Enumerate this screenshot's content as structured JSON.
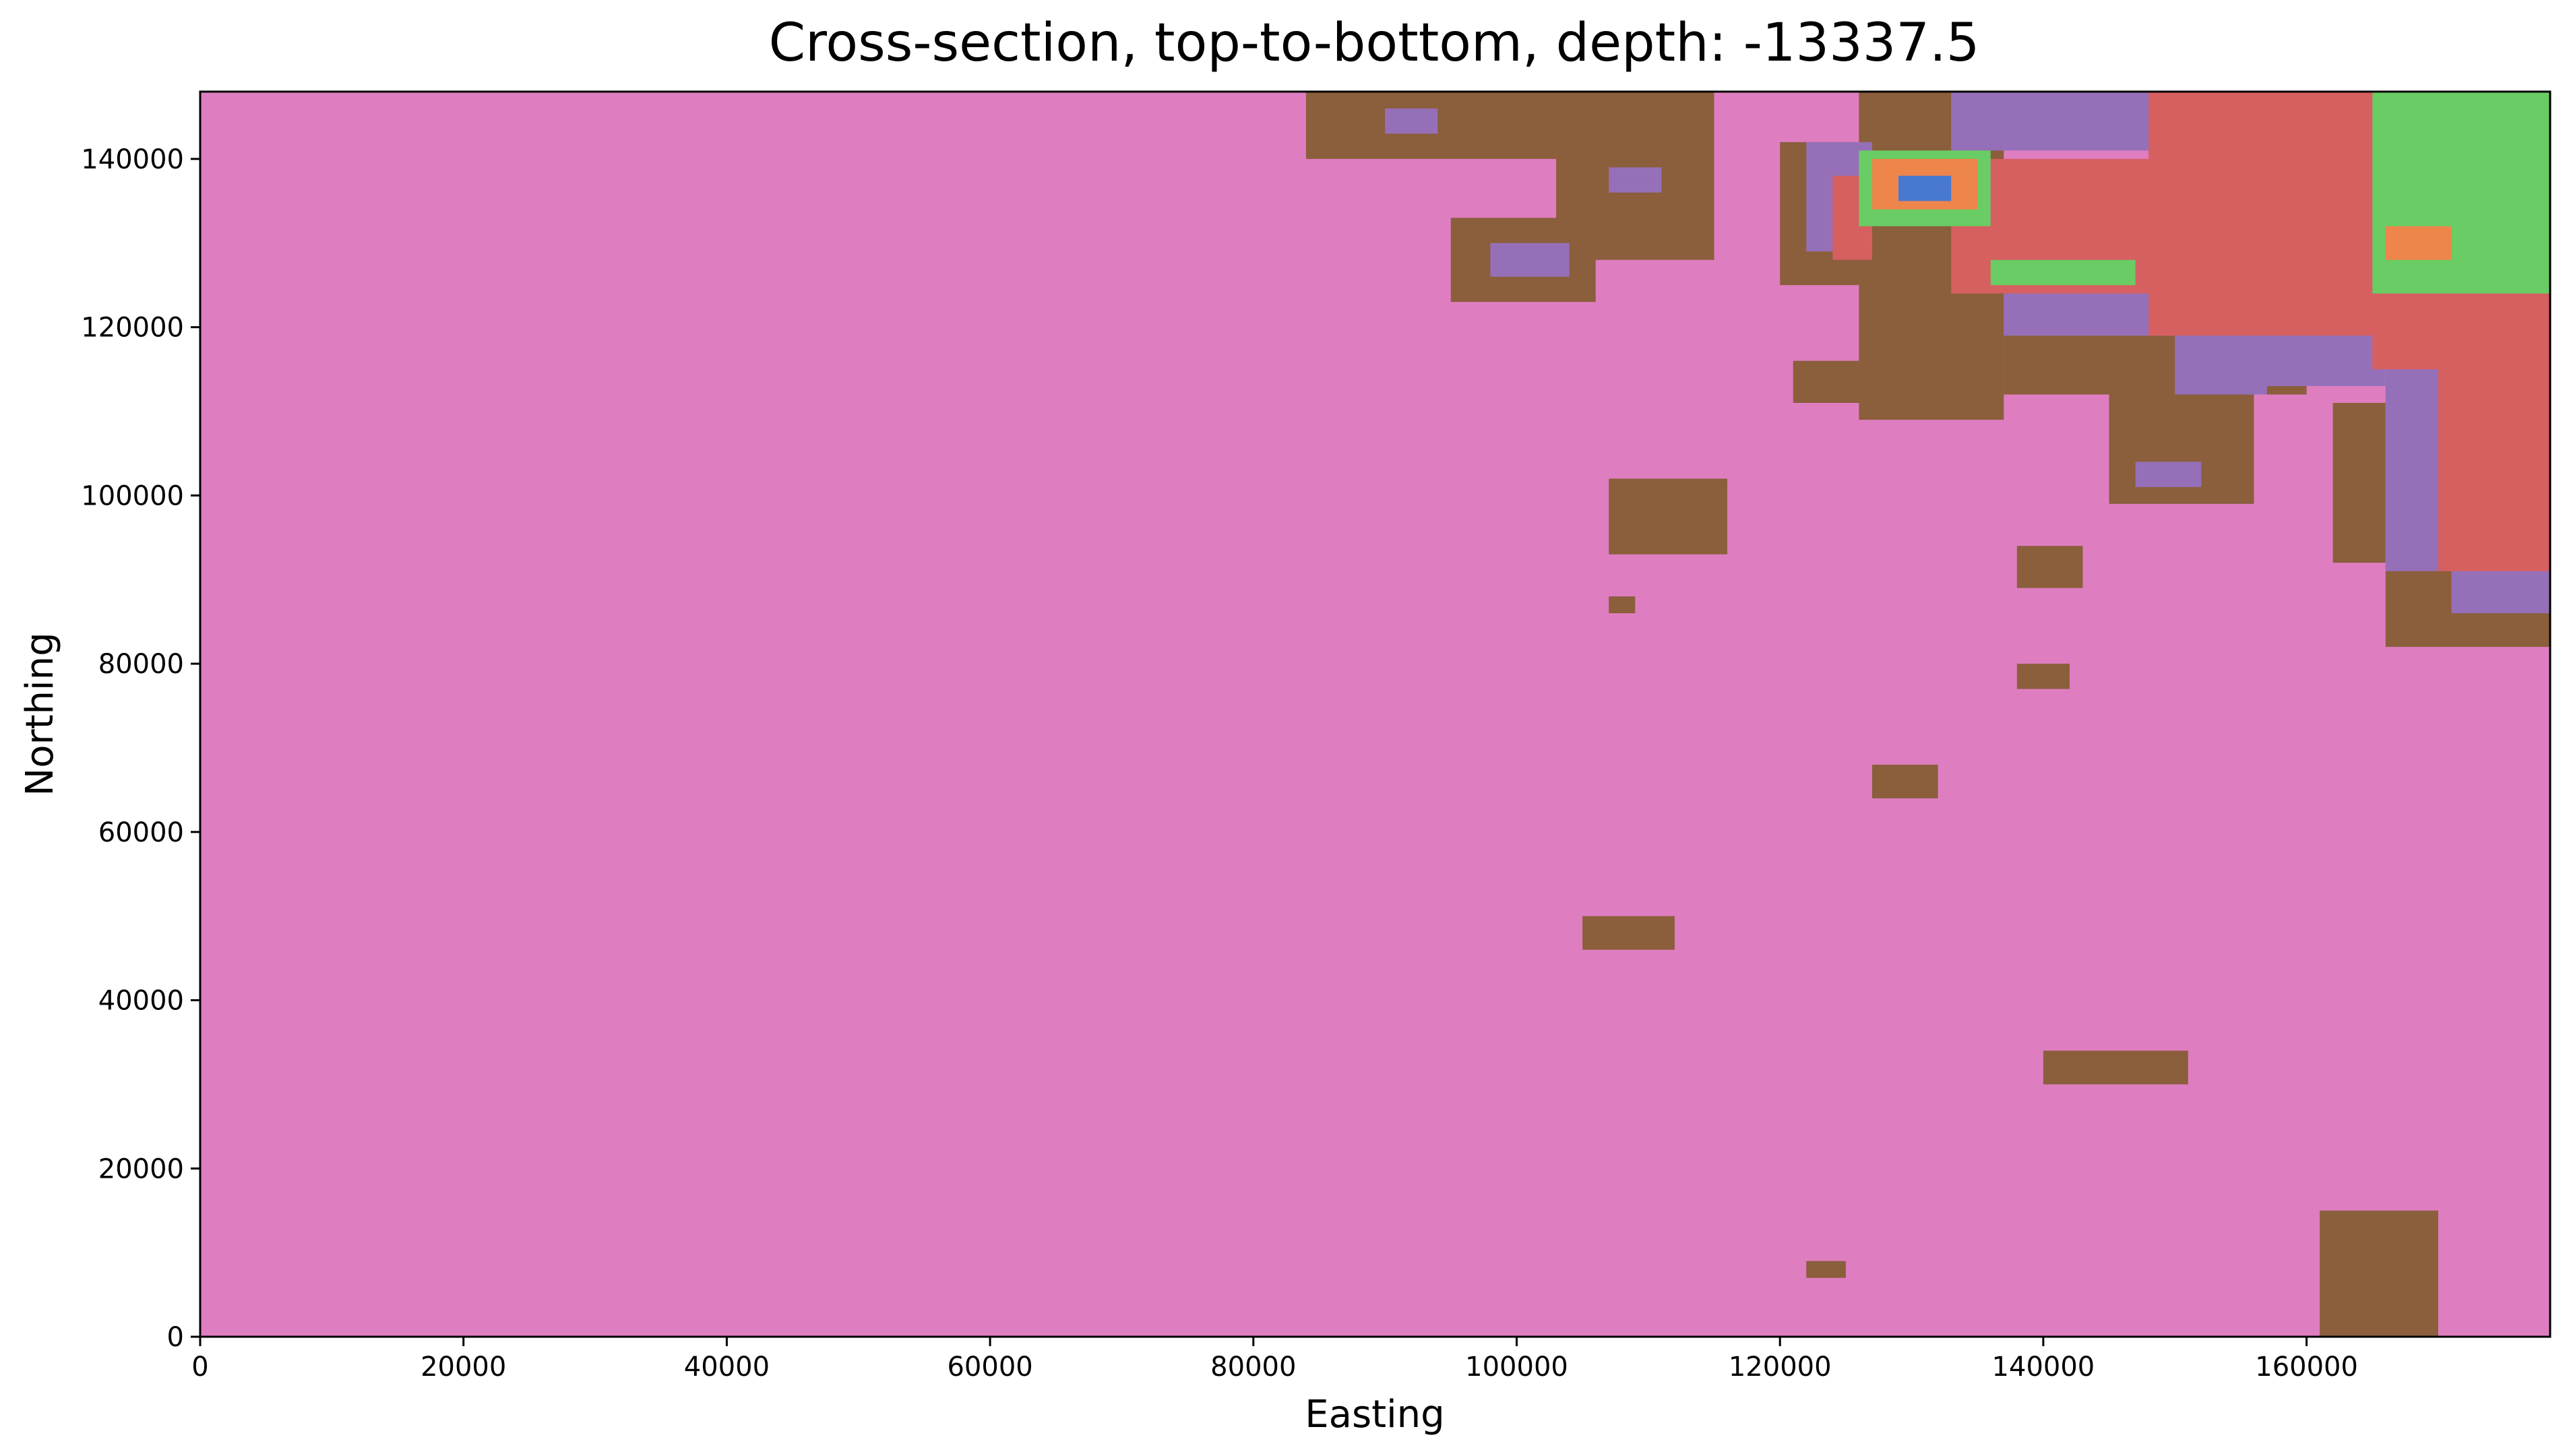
{
  "chart_data": {
    "type": "heatmap",
    "title": "Cross-section, top-to-bottom, depth: -13337.5",
    "xlabel": "Easting",
    "ylabel": "Northing",
    "xlim": [
      0,
      178500
    ],
    "ylim": [
      0,
      148000
    ],
    "x_ticks": [
      0,
      20000,
      40000,
      60000,
      80000,
      100000,
      120000,
      140000,
      160000
    ],
    "y_ticks": [
      0,
      20000,
      40000,
      60000,
      80000,
      100000,
      120000,
      140000
    ],
    "grid": false,
    "background_unit": "pink",
    "unit_colors": {
      "pink": "#de7ec0",
      "brown": "#8b5e3c",
      "purple": "#9570b8",
      "red": "#d65f5f",
      "green": "#6acc64",
      "orange": "#ee854a",
      "blue": "#4878d0"
    },
    "regions": [
      {
        "unit": "brown",
        "x": [
          84000,
          103000
        ],
        "y": [
          140000,
          148000
        ]
      },
      {
        "unit": "brown",
        "x": [
          103000,
          115000
        ],
        "y": [
          128000,
          148000
        ]
      },
      {
        "unit": "brown",
        "x": [
          95000,
          106000
        ],
        "y": [
          123000,
          133000
        ]
      },
      {
        "unit": "brown",
        "x": [
          120000,
          126000
        ],
        "y": [
          125000,
          142000
        ]
      },
      {
        "unit": "brown",
        "x": [
          126000,
          137000
        ],
        "y": [
          109000,
          148000
        ]
      },
      {
        "unit": "brown",
        "x": [
          121000,
          126000
        ],
        "y": [
          111000,
          116000
        ]
      },
      {
        "unit": "brown",
        "x": [
          137000,
          160000
        ],
        "y": [
          112000,
          119000
        ]
      },
      {
        "unit": "brown",
        "x": [
          145000,
          156000
        ],
        "y": [
          99000,
          113000
        ]
      },
      {
        "unit": "brown",
        "x": [
          162000,
          166000
        ],
        "y": [
          92000,
          111000
        ]
      },
      {
        "unit": "brown",
        "x": [
          166000,
          178500
        ],
        "y": [
          82000,
          92000
        ]
      },
      {
        "unit": "brown",
        "x": [
          139000,
          146000
        ],
        "y": [
          131000,
          139000
        ]
      },
      {
        "unit": "purple",
        "x": [
          90000,
          94000
        ],
        "y": [
          143000,
          146000
        ]
      },
      {
        "unit": "purple",
        "x": [
          98000,
          104000
        ],
        "y": [
          126000,
          130000
        ]
      },
      {
        "unit": "purple",
        "x": [
          107000,
          111000
        ],
        "y": [
          136000,
          139000
        ]
      },
      {
        "unit": "purple",
        "x": [
          122000,
          127000
        ],
        "y": [
          129000,
          142000
        ]
      },
      {
        "unit": "purple",
        "x": [
          133000,
          150000
        ],
        "y": [
          141000,
          148000
        ]
      },
      {
        "unit": "purple",
        "x": [
          137000,
          150000
        ],
        "y": [
          119000,
          131000
        ]
      },
      {
        "unit": "purple",
        "x": [
          150000,
          157000
        ],
        "y": [
          112000,
          138000
        ]
      },
      {
        "unit": "purple",
        "x": [
          157000,
          166000
        ],
        "y": [
          113000,
          124000
        ]
      },
      {
        "unit": "purple",
        "x": [
          166000,
          171000
        ],
        "y": [
          91000,
          118000
        ]
      },
      {
        "unit": "purple",
        "x": [
          171000,
          178500
        ],
        "y": [
          86000,
          92000
        ]
      },
      {
        "unit": "purple",
        "x": [
          173000,
          178500
        ],
        "y": [
          102000,
          108000
        ]
      },
      {
        "unit": "purple",
        "x": [
          147000,
          152000
        ],
        "y": [
          101000,
          104000
        ]
      },
      {
        "unit": "red",
        "x": [
          124000,
          127000
        ],
        "y": [
          128000,
          138000
        ]
      },
      {
        "unit": "red",
        "x": [
          133000,
          150000
        ],
        "y": [
          124000,
          140000
        ]
      },
      {
        "unit": "red",
        "x": [
          148000,
          166000
        ],
        "y": [
          119000,
          148000
        ]
      },
      {
        "unit": "red",
        "x": [
          165000,
          178500
        ],
        "y": [
          115000,
          128000
        ]
      },
      {
        "unit": "red",
        "x": [
          170000,
          178500
        ],
        "y": [
          91000,
          116000
        ]
      },
      {
        "unit": "green",
        "x": [
          126000,
          136000
        ],
        "y": [
          132000,
          141000
        ]
      },
      {
        "unit": "green",
        "x": [
          136000,
          147000
        ],
        "y": [
          125000,
          128000
        ]
      },
      {
        "unit": "green",
        "x": [
          165000,
          178500
        ],
        "y": [
          124000,
          148000
        ]
      },
      {
        "unit": "orange",
        "x": [
          127000,
          135000
        ],
        "y": [
          134000,
          140000
        ]
      },
      {
        "unit": "orange",
        "x": [
          166000,
          171000
        ],
        "y": [
          128000,
          132000
        ]
      },
      {
        "unit": "blue",
        "x": [
          129000,
          133000
        ],
        "y": [
          135000,
          138000
        ]
      },
      {
        "unit": "brown",
        "x": [
          107000,
          116000
        ],
        "y": [
          93000,
          102000
        ]
      },
      {
        "unit": "brown",
        "x": [
          107000,
          109000
        ],
        "y": [
          86000,
          88000
        ]
      },
      {
        "unit": "brown",
        "x": [
          138000,
          143000
        ],
        "y": [
          89000,
          94000
        ]
      },
      {
        "unit": "brown",
        "x": [
          138000,
          142000
        ],
        "y": [
          77000,
          80000
        ]
      },
      {
        "unit": "brown",
        "x": [
          127000,
          132000
        ],
        "y": [
          64000,
          68000
        ]
      },
      {
        "unit": "brown",
        "x": [
          105000,
          112000
        ],
        "y": [
          46000,
          50000
        ]
      },
      {
        "unit": "brown",
        "x": [
          140000,
          151000
        ],
        "y": [
          30000,
          34000
        ]
      },
      {
        "unit": "brown",
        "x": [
          122000,
          125000
        ],
        "y": [
          7000,
          9000
        ]
      },
      {
        "unit": "brown",
        "x": [
          161000,
          170000
        ],
        "y": [
          0,
          15000
        ]
      }
    ]
  }
}
